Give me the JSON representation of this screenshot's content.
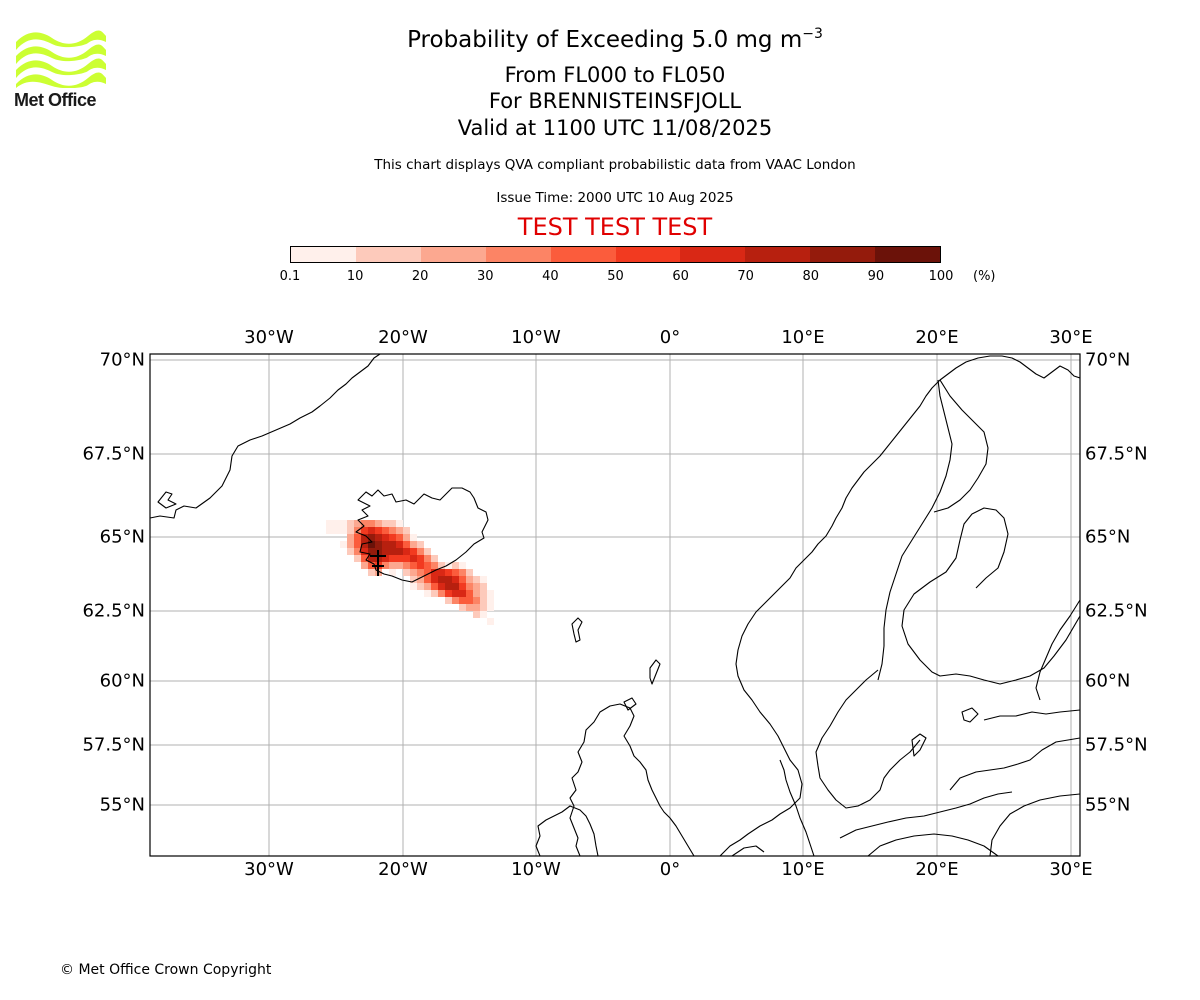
{
  "logo": {
    "text": "Met Office",
    "color": "#ccff33"
  },
  "title": {
    "main": "Probability of Exceeding 5.0 mg m",
    "main_sup": "−3",
    "flight_levels": "From FL000 to FL050",
    "volcano": "For BRENNISTEINSFJOLL",
    "valid": "Valid at 1100 UTC 11/08/2025",
    "description": "This chart displays QVA compliant probabilistic data from VAAC London",
    "issue_time": "Issue Time: 2000 UTC 10 Aug 2025",
    "test_banner": "TEST TEST TEST"
  },
  "colorbar": {
    "labels": [
      "0.1",
      "10",
      "20",
      "30",
      "40",
      "50",
      "60",
      "70",
      "80",
      "90",
      "100"
    ],
    "unit": "(%)",
    "colors": [
      "#fff0eb",
      "#fdcabb",
      "#fca890",
      "#fc8465",
      "#fb5c3c",
      "#f23a20",
      "#d92815",
      "#b7200f",
      "#941b0c",
      "#6b1209"
    ]
  },
  "map": {
    "lon_labels": [
      "30°W",
      "20°W",
      "10°W",
      "0°",
      "10°E",
      "20°E",
      "30°E"
    ],
    "lat_labels": [
      "70°N",
      "67.5°N",
      "65°N",
      "62.5°N",
      "60°N",
      "57.5°N",
      "55°N"
    ],
    "extent": {
      "lon": [
        -39,
        30
      ],
      "lat": [
        53,
        70.2
      ]
    },
    "volcano_marker": "Brennisteinsfjoll"
  },
  "footer": {
    "copyright": "© Met Office Crown Copyright"
  }
}
